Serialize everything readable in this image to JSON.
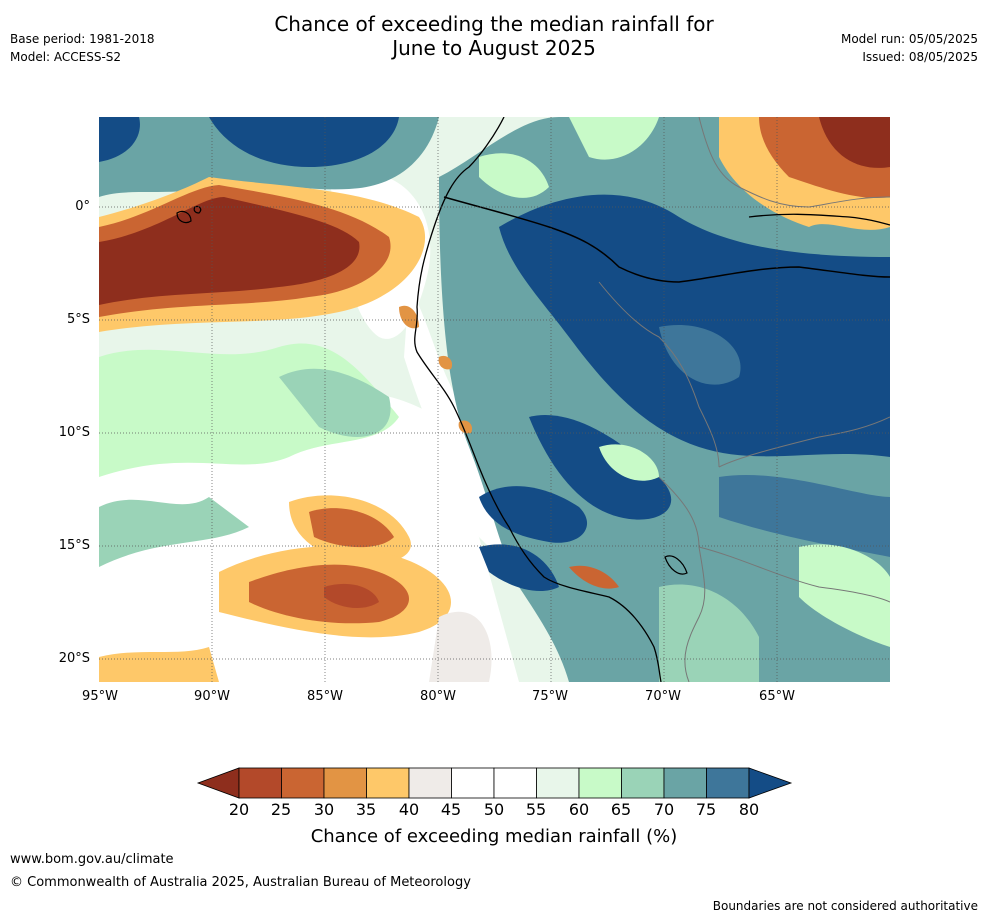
{
  "header": {
    "title_line1": "Chance of exceeding the median rainfall for",
    "title_line2": "June to August 2025",
    "base_period": "Base period: 1981-2018",
    "model": "Model: ACCESS-S2",
    "model_run": "Model run: 05/05/2025",
    "issued": "Issued: 08/05/2025"
  },
  "map": {
    "lat_labels": [
      "0°",
      "5°S",
      "10°S",
      "15°S",
      "20°S"
    ],
    "lon_labels": [
      "95°W",
      "90°W",
      "85°W",
      "80°W",
      "75°W",
      "70°W",
      "65°W"
    ]
  },
  "colorbar": {
    "ticks": [
      "20",
      "25",
      "30",
      "35",
      "40",
      "45",
      "50",
      "55",
      "60",
      "65",
      "70",
      "75",
      "80"
    ],
    "colors": [
      "#8e2e1d",
      "#b3492a",
      "#ca6532",
      "#e29444",
      "#fec869",
      "#efebe8",
      "#ffffff",
      "#ffffff",
      "#e8f6ea",
      "#c8fac8",
      "#9ad3b7",
      "#6aa4a5",
      "#3e769a",
      "#144c86"
    ],
    "label": "Chance of exceeding median rainfall (%)"
  },
  "footer": {
    "website": "www.bom.gov.au/climate",
    "copyright": "© Commonwealth of Australia 2025, Australian Bureau of Meteorology",
    "disclaimer": "Boundaries are not considered authoritative"
  }
}
